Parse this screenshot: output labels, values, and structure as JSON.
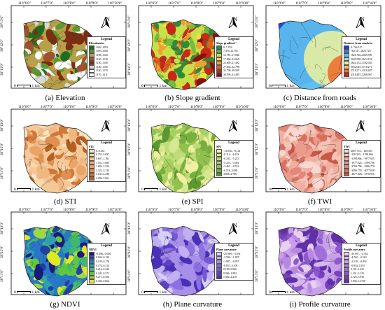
{
  "longitudes": [
    "110°6'0\"",
    "110°7'0\"",
    "110°8'0\"",
    "110°9'0\"",
    "110°10'0\""
  ],
  "latitudes": [
    "38°13'0\"",
    "38°12'0\"",
    "38°11'0\""
  ],
  "north_label": "N",
  "scale_zero": "0",
  "scale_label": "1 km",
  "legend_title": "Legend",
  "panels": [
    {
      "id": "a",
      "caption": "(a) Elevation",
      "subtitle": "Elevation/m",
      "legend": "boxed",
      "classes": [
        {
          "label": "1042–1093",
          "color": "#1f6e1f"
        },
        {
          "label": "1093–1108",
          "color": "#5c9a2e"
        },
        {
          "label": "1108–1120",
          "color": "#b8a04a"
        },
        {
          "label": "1120–1130",
          "color": "#a0522d"
        },
        {
          "label": "1130–1140",
          "color": "#7a2e12"
        },
        {
          "label": "1140–1150",
          "color": "#d8d8d8"
        },
        {
          "label": "1150–1170",
          "color": "#ffffff"
        },
        {
          "label": "1170–1211",
          "color": "#f5f5f5"
        }
      ]
    },
    {
      "id": "b",
      "caption": "(b) Slope gradient",
      "subtitle": "Slope gradient/°",
      "legend": "boxed",
      "classes": [
        {
          "label": "0–7.476",
          "color": "#2f8a3a"
        },
        {
          "label": "7.476–12.781",
          "color": "#6fbf3e"
        },
        {
          "label": "12.781–17.846",
          "color": "#c8e048"
        },
        {
          "label": "17.846–22.669",
          "color": "#f0e040"
        },
        {
          "label": "22.669–27.492",
          "color": "#f0a030"
        },
        {
          "label": "27.492–32.798",
          "color": "#e06020"
        },
        {
          "label": "32.798–39.599",
          "color": "#c82818"
        },
        {
          "label": "39.599–61.495",
          "color": "#8a1010"
        }
      ]
    },
    {
      "id": "c",
      "caption": "(c) Distance from roads",
      "subtitle": "Distance from roads/m",
      "legend": "boxed",
      "classes": [
        {
          "label": "0–764.517",
          "color": "#1a3fd0"
        },
        {
          "label": "764.517–1625.726",
          "color": "#3a7fe8"
        },
        {
          "label": "1625.726–2045.599",
          "color": "#5ec0f0"
        },
        {
          "label": "2045.599–2624.152",
          "color": "#9ee0c0"
        },
        {
          "label": "2624.152–3182.045",
          "color": "#e8f0a0"
        },
        {
          "label": "3182.045–3718.271",
          "color": "#f8c060"
        },
        {
          "label": "3718.271–4318.487",
          "color": "#f07030"
        },
        {
          "label": "4318.487–5268.967",
          "color": "#d82010"
        }
      ]
    },
    {
      "id": "d",
      "caption": "(d) STI",
      "subtitle": "STI",
      "legend": "boxed",
      "classes": [
        {
          "label": "0–0.252",
          "color": "#fbe6cc"
        },
        {
          "label": "0.252–0.697",
          "color": "#f8d8b0"
        },
        {
          "label": "0.697–1.161",
          "color": "#f5c898"
        },
        {
          "label": "1.161–1.683",
          "color": "#f0b880"
        },
        {
          "label": "1.683–2.322",
          "color": "#eaa468"
        },
        {
          "label": "2.322–3.135",
          "color": "#e09050"
        },
        {
          "label": "3.135–4.296",
          "color": "#d07838"
        },
        {
          "label": "4.296–7.661",
          "color": "#b86020"
        }
      ]
    },
    {
      "id": "e",
      "caption": "(e) SPI",
      "subtitle": "SPI",
      "legend": "boxed",
      "classes": [
        {
          "label": "-13.816– -8.114",
          "color": "#f0f0a0"
        },
        {
          "label": "-8.114– -6.233",
          "color": "#d8e890"
        },
        {
          "label": "-6.233– -5.223",
          "color": "#c0dc78"
        },
        {
          "label": "-5.223– -3.461",
          "color": "#a8d060"
        },
        {
          "label": "-3.461– -0.516",
          "color": "#90c050"
        },
        {
          "label": "-0.516–4.838",
          "color": "#78b040"
        },
        {
          "label": "4.838–2.786",
          "color": "#5c9830"
        }
      ]
    },
    {
      "id": "f",
      "caption": "(f) TWI",
      "subtitle": "TWI",
      "legend": "boxed",
      "classes": [
        {
          "label": "4007.753– -128.303",
          "color": "#f8d8d0"
        },
        {
          "label": "-128.303– -1198.866",
          "color": "#f4c4b8"
        },
        {
          "label": "-1198.866– -1977.025",
          "color": "#f0b0a0"
        },
        {
          "label": "-1977.025– -2709.796",
          "color": "#ea9c8c"
        },
        {
          "label": "-2709.796– -3396.778",
          "color": "#e28878"
        },
        {
          "label": "-3396.778– -4077.028",
          "color": "#d87060"
        },
        {
          "label": "-4077.028– -4770.916",
          "color": "#c85848"
        }
      ]
    },
    {
      "id": "g",
      "caption": "(g) NDVI",
      "subtitle": "NDVI",
      "legend": "boxed",
      "classes": [
        {
          "label": "-0.396– 0.026",
          "color": "#1a1a7a"
        },
        {
          "label": "0.026–0.129",
          "color": "#2040a8"
        },
        {
          "label": "0.129–0.176",
          "color": "#2878c8"
        },
        {
          "label": "0.176–0.214",
          "color": "#30a0b0"
        },
        {
          "label": "0.214–0.242",
          "color": "#40b870"
        },
        {
          "label": "0.242–0.271",
          "color": "#60c840"
        },
        {
          "label": "0.271–0.304",
          "color": "#a0d840"
        },
        {
          "label": "0.304–0.664",
          "color": "#e0e820"
        }
      ]
    },
    {
      "id": "h",
      "caption": "(h) Plane curvature",
      "subtitle": "Plane curvature",
      "legend": "boxed",
      "classes": [
        {
          "label": "-25.989– -3.592",
          "color": "#d8d0f8"
        },
        {
          "label": "-3.592– -1.997",
          "color": "#c0b0f0"
        },
        {
          "label": "-1.997– -0.957",
          "color": "#a890e8"
        },
        {
          "label": "-0.957–0.109",
          "color": "#8c70e0"
        },
        {
          "label": "0.109–0.966",
          "color": "#7458d8"
        },
        {
          "label": "0.966–1.982",
          "color": "#5c40c8"
        },
        {
          "label": "1.982–2.216",
          "color": "#4830b8"
        }
      ]
    },
    {
      "id": "i",
      "caption": "(i) Profile curvature",
      "subtitle": "Profile curvature",
      "legend": "boxed",
      "classes": [
        {
          "label": "-23.997– -4.762",
          "color": "#e8d0f0"
        },
        {
          "label": "-4.762– -2.519",
          "color": "#d8b8ec"
        },
        {
          "label": "-2.519– -0.854",
          "color": "#c8a0e8"
        },
        {
          "label": "-0.854–0.191",
          "color": "#b888e0"
        },
        {
          "label": "0.191–1.431",
          "color": "#a070d8"
        },
        {
          "label": "1.431–3.125",
          "color": "#8c58d0"
        },
        {
          "label": "3.125–5.936",
          "color": "#7840c0"
        },
        {
          "label": "5.936–14.720",
          "color": "#6030a8"
        }
      ]
    }
  ]
}
